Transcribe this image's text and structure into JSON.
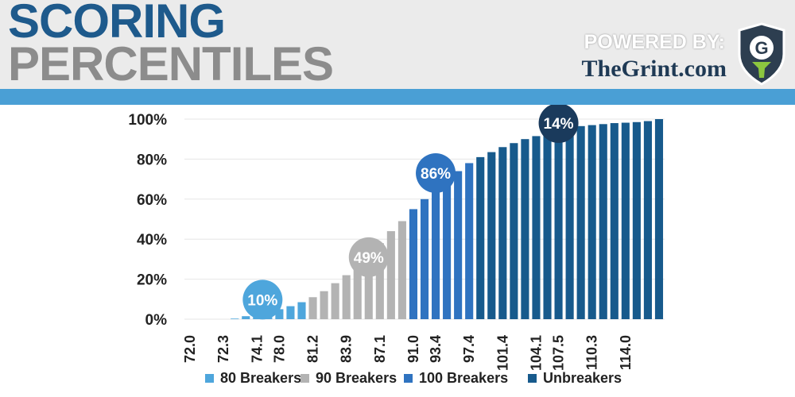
{
  "header": {
    "title_line1": "SCORING",
    "title_line2": "PERCENTILES",
    "powered_by": "POWERED BY:",
    "site": "TheGrint.com",
    "logo_letter": "G"
  },
  "colors": {
    "title_blue": "#1e5a8c",
    "title_gray": "#8c8c8c",
    "stripe": "#4a9fd5",
    "series_80": "#4ea6dc",
    "series_90": "#b3b3b3",
    "series_100": "#2f73c0",
    "series_unbreakers": "#175a8c",
    "bubble_unbreakers": "#1a3a5c",
    "gridline": "#e6e6e6",
    "logo_shield": "#2d3e50",
    "logo_tee": "#8cc63f"
  },
  "chart_data": {
    "type": "bar",
    "ylim": [
      0,
      100
    ],
    "yticks": [
      "0%",
      "20%",
      "40%",
      "60%",
      "80%",
      "100%"
    ],
    "tick_labels": [
      "72.0",
      "72.3",
      "74.1",
      "78.0",
      "81.2",
      "83.9",
      "87.1",
      "91.0",
      "93.4",
      "97.4",
      "101.4",
      "104.1",
      "107.5",
      "110.3",
      "114.0"
    ],
    "series": [
      {
        "name": "80 Breakers",
        "values": [
          0,
          0,
          0,
          0,
          0.3,
          1.5,
          2.5,
          3.5,
          5,
          6.5,
          8.5
        ]
      },
      {
        "name": "90 Breakers",
        "values": [
          11,
          14,
          18,
          22,
          26,
          32,
          38,
          44,
          49
        ]
      },
      {
        "name": "100 Breakers",
        "values": [
          55,
          60,
          65,
          70,
          74,
          78
        ]
      },
      {
        "name": "Unbreakers",
        "values": [
          81,
          83.5,
          86,
          88,
          90,
          91.5,
          93,
          94.5,
          95.5,
          96.5,
          97,
          97.5,
          98,
          98.2,
          98.5,
          99,
          100
        ]
      }
    ],
    "annotations": [
      {
        "series": "80 Breakers",
        "text": "10%"
      },
      {
        "series": "90 Breakers",
        "text": "49%"
      },
      {
        "series": "100 Breakers",
        "text": "86%"
      },
      {
        "series": "Unbreakers",
        "text": "14%"
      }
    ],
    "grid": true,
    "legend_position": "bottom"
  }
}
